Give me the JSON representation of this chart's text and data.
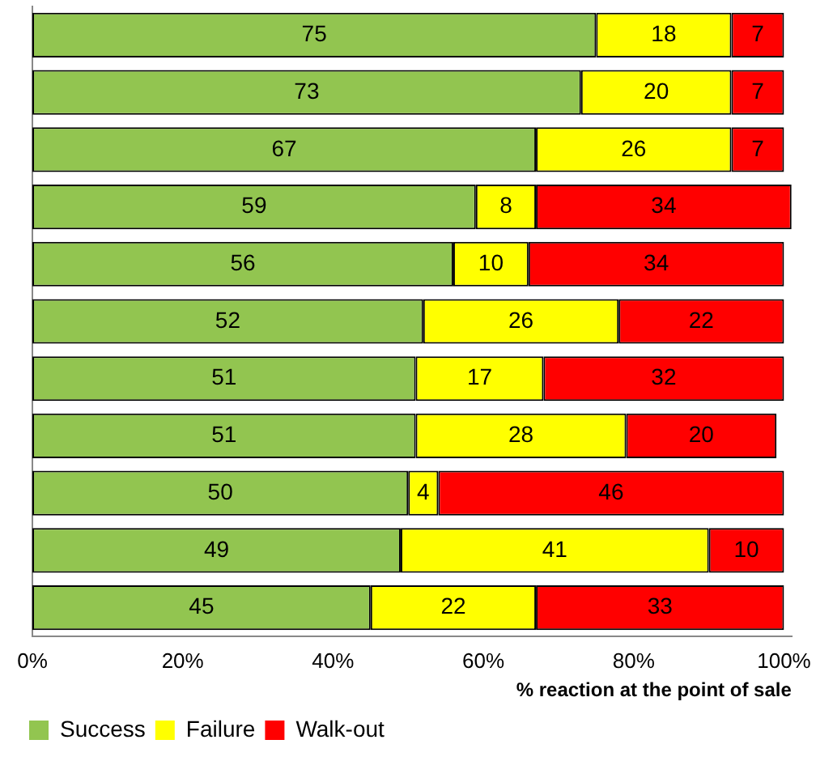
{
  "chart_data": {
    "type": "bar",
    "orientation": "horizontal",
    "stacked": true,
    "xlabel": "% reaction at the point of sale",
    "categories": [
      null,
      null,
      null,
      null,
      null,
      null,
      null,
      null,
      null,
      null,
      null
    ],
    "series": [
      {
        "name": "Success",
        "color": "#92c550",
        "values": [
          75,
          73,
          67,
          59,
          56,
          52,
          51,
          51,
          50,
          49,
          45
        ]
      },
      {
        "name": "Failure",
        "color": "#ffff00",
        "values": [
          18,
          20,
          26,
          8,
          10,
          26,
          17,
          28,
          4,
          41,
          22
        ]
      },
      {
        "name": "Walk-out",
        "color": "#ff0000",
        "values": [
          7,
          7,
          7,
          34,
          34,
          22,
          32,
          20,
          46,
          10,
          33
        ]
      }
    ],
    "xlim": [
      0,
      101
    ],
    "xticks": [
      {
        "value": 0,
        "label": "0%"
      },
      {
        "value": 20,
        "label": "20%"
      },
      {
        "value": 40,
        "label": "40%"
      },
      {
        "value": 60,
        "label": "60%"
      },
      {
        "value": 80,
        "label": "80%"
      },
      {
        "value": 100,
        "label": "100%"
      }
    ],
    "tick_labels": "x",
    "grid": false,
    "legend": "bottom left",
    "data_labels": true
  }
}
